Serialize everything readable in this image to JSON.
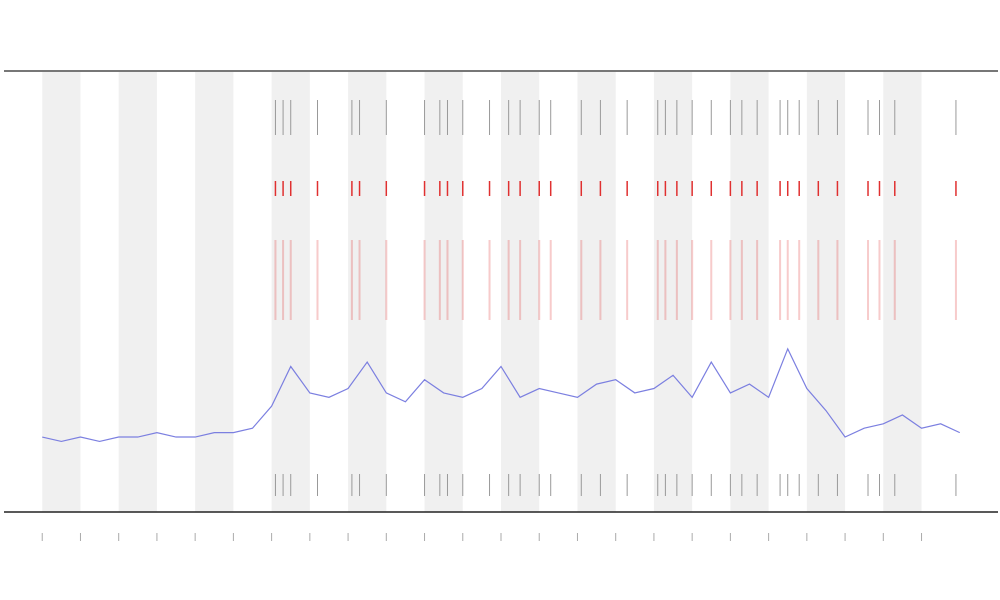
{
  "chart_data": {
    "type": "line",
    "xlim": [
      -1,
      25
    ],
    "xticks": [
      0,
      1,
      2,
      3,
      4,
      5,
      6,
      7,
      8,
      9,
      10,
      11,
      12,
      13,
      14,
      15,
      16,
      17,
      18,
      19,
      20,
      21,
      22,
      23
    ],
    "ylim": [
      0,
      100
    ],
    "bands": [
      [
        0,
        1
      ],
      [
        2,
        3
      ],
      [
        4,
        5
      ],
      [
        6,
        7
      ],
      [
        8,
        9
      ],
      [
        10,
        11
      ],
      [
        12,
        13
      ],
      [
        14,
        15
      ],
      [
        16,
        17
      ],
      [
        18,
        19
      ],
      [
        20,
        21
      ],
      [
        22,
        23
      ]
    ],
    "band_color": "#f0f0f0",
    "x": [
      0,
      0.5,
      1,
      1.5,
      2,
      2.5,
      3,
      3.5,
      4,
      4.5,
      5,
      5.5,
      6,
      6.5,
      7,
      7.5,
      8,
      8.5,
      9,
      9.5,
      10,
      10.5,
      11,
      11.5,
      12,
      12.5,
      13,
      13.5,
      14,
      14.5,
      15,
      15.5,
      16,
      16.5,
      17,
      17.5,
      18,
      18.5,
      19,
      19.5,
      20,
      20.5,
      21,
      21.5,
      22,
      22.5,
      23,
      23.5,
      24
    ],
    "series": [
      {
        "color": "#7b7fe0",
        "values": [
          17,
          16,
          17,
          16,
          17,
          17,
          18,
          17,
          17,
          18,
          18,
          19,
          24,
          33,
          27,
          26,
          28,
          34,
          27,
          25,
          30,
          27,
          26,
          28,
          33,
          26,
          28,
          27,
          26,
          29,
          30,
          27,
          28,
          31,
          26,
          34,
          27,
          29,
          26,
          37,
          28,
          23,
          17,
          19,
          20,
          22,
          19,
          20,
          18
        ]
      }
    ],
    "events": [
      6.1,
      6.3,
      6.5,
      7.2,
      8.1,
      8.3,
      9.0,
      10.0,
      10.4,
      10.6,
      11.0,
      11.7,
      12.2,
      12.5,
      13.0,
      13.3,
      14.1,
      14.6,
      15.3,
      16.1,
      16.3,
      16.6,
      17.0,
      17.5,
      18.0,
      18.3,
      18.7,
      19.3,
      19.5,
      19.8,
      20.3,
      20.8,
      21.6,
      21.9,
      22.3,
      23.9
    ],
    "event_color": "#e03030"
  }
}
